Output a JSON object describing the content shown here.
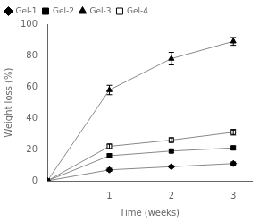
{
  "chart_data": {
    "type": "line",
    "x": [
      0,
      1,
      2,
      3
    ],
    "xlabel": "Time (weeks)",
    "ylabel": "Weight loss (%)",
    "xlim": [
      0,
      3.3
    ],
    "ylim": [
      0,
      100
    ],
    "xticks": [
      1,
      2,
      3
    ],
    "yticks": [
      0,
      20,
      40,
      60,
      80,
      100
    ],
    "grid": false,
    "legend": "upper left",
    "series": [
      {
        "name": "Gel-1",
        "color": "#888888",
        "marker": "diamond",
        "values": [
          0,
          7,
          9,
          11
        ],
        "yerr": [
          0,
          1.0,
          0.8,
          1.0
        ]
      },
      {
        "name": "Gel-2",
        "color": "#888888",
        "marker": "square",
        "values": [
          0,
          16,
          19,
          21
        ],
        "yerr": [
          0,
          1.2,
          1.0,
          1.2
        ]
      },
      {
        "name": "Gel-3",
        "color": "#888888",
        "marker": "triangle",
        "values": [
          0,
          58,
          78,
          89
        ],
        "yerr": [
          0,
          3.0,
          4.0,
          2.5
        ]
      },
      {
        "name": "Gel-4",
        "color": "#888888",
        "marker": "open_square",
        "values": [
          0,
          22,
          26,
          31
        ],
        "yerr": [
          0,
          1.5,
          1.5,
          1.8
        ]
      }
    ]
  }
}
